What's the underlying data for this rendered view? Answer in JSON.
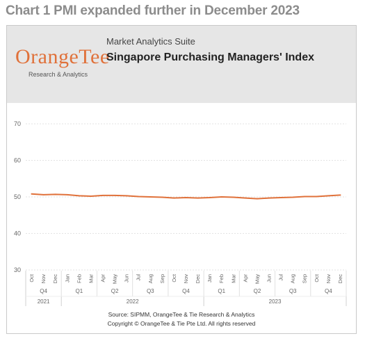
{
  "page": {
    "title": "Chart 1 PMI expanded further in December 2023"
  },
  "header": {
    "logo_text": "OrangeTee",
    "logo_subtitle": "Research & Analytics",
    "suite_name": "Market Analytics Suite",
    "chart_title": "Singapore Purchasing Managers' Index"
  },
  "footer": {
    "source": "Source: SIPMM, OrangeTee & Tie Research & Analytics",
    "copyright": "Copyright © OrangeTee & Tie Pte Ltd. All rights reserved"
  },
  "colors": {
    "line": "#e0713a",
    "grid": "#e3e3e3",
    "header_bg": "#e6e6e6",
    "title": "#8c8c8c"
  },
  "chart_data": {
    "type": "line",
    "title": "Singapore Purchasing Managers' Index",
    "xlabel": "",
    "ylabel": "",
    "ylim": [
      30,
      70
    ],
    "yticks": [
      30,
      40,
      50,
      60,
      70
    ],
    "grid": true,
    "legend": "none",
    "x": [
      "Oct",
      "Nov",
      "Dec",
      "Jan",
      "Feb",
      "Mar",
      "Apr",
      "May",
      "Jun",
      "Jul",
      "Aug",
      "Sep",
      "Oct",
      "Nov",
      "Dec",
      "Jan",
      "Feb",
      "Mar",
      "Apr",
      "May",
      "Jun",
      "Jul",
      "Aug",
      "Sep",
      "Oct",
      "Nov",
      "Dec"
    ],
    "quarters": [
      {
        "label": "Q4",
        "count": 3
      },
      {
        "label": "Q1",
        "count": 3
      },
      {
        "label": "Q2",
        "count": 3
      },
      {
        "label": "Q3",
        "count": 3
      },
      {
        "label": "Q4",
        "count": 3
      },
      {
        "label": "Q1",
        "count": 3
      },
      {
        "label": "Q2",
        "count": 3
      },
      {
        "label": "Q3",
        "count": 3
      },
      {
        "label": "Q4",
        "count": 3
      }
    ],
    "years": [
      {
        "label": "2021",
        "count": 3
      },
      {
        "label": "2022",
        "count": 12
      },
      {
        "label": "2023",
        "count": 12
      }
    ],
    "series": [
      {
        "values": [
          50.8,
          50.6,
          50.7,
          50.6,
          50.3,
          50.2,
          50.4,
          50.4,
          50.3,
          50.1,
          50.0,
          49.9,
          49.7,
          49.8,
          49.7,
          49.8,
          50.0,
          49.9,
          49.7,
          49.5,
          49.7,
          49.8,
          49.9,
          50.1,
          50.1,
          50.3,
          50.5
        ]
      }
    ]
  }
}
